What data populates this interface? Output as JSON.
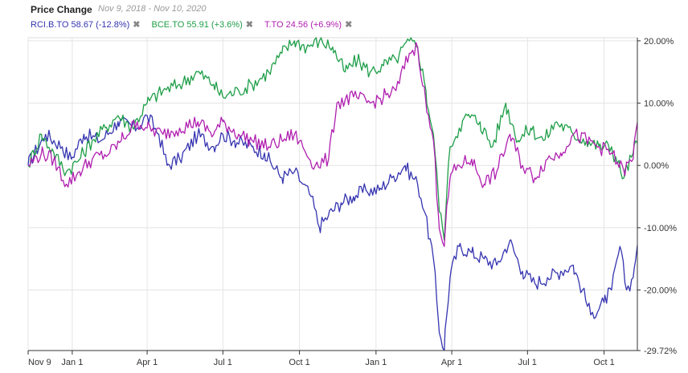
{
  "header": {
    "title": "Price Change",
    "date_range": "Nov 9, 2018 - Nov 10, 2020"
  },
  "legend": [
    {
      "label": "RCI.B.TO 58.67 (-12.8%)",
      "color": "#3534b0",
      "close": "✖"
    },
    {
      "label": "BCE.TO 55.91 (+3.6%)",
      "color": "#1e9e48",
      "close": "✖"
    },
    {
      "label": "T.TO 24.56 (+6.9%)",
      "color": "#b01fb0",
      "close": "✖"
    }
  ],
  "chart_data": {
    "type": "line",
    "x_ticks": [
      "Nov 9",
      "Jan 1",
      "Apr 1",
      "Jul 1",
      "Oct 1",
      "Jan 1",
      "Apr 1",
      "Jul 1",
      "Oct 1"
    ],
    "y_ticks": [
      "20.00%",
      "10.00%",
      "0.00%",
      "-10.00%",
      "-20.00%",
      "-29.72%"
    ],
    "ylim": [
      -29.72,
      20.5
    ],
    "x_range": [
      "2018-11-09",
      "2020-11-10"
    ],
    "series": [
      {
        "name": "RCI.B.TO",
        "color": "#3534b0",
        "points": [
          [
            "2018-11-09",
            0
          ],
          [
            "2018-11-30",
            5
          ],
          [
            "2018-12-20",
            3
          ],
          [
            "2018-12-31",
            1
          ],
          [
            "2019-01-15",
            5
          ],
          [
            "2019-02-05",
            4
          ],
          [
            "2019-02-25",
            7
          ],
          [
            "2019-03-20",
            6
          ],
          [
            "2019-04-01",
            8
          ],
          [
            "2019-04-15",
            5
          ],
          [
            "2019-04-25",
            0
          ],
          [
            "2019-05-10",
            1
          ],
          [
            "2019-06-01",
            5
          ],
          [
            "2019-06-20",
            3
          ],
          [
            "2019-07-01",
            5
          ],
          [
            "2019-07-15",
            4
          ],
          [
            "2019-08-05",
            3
          ],
          [
            "2019-08-20",
            2
          ],
          [
            "2019-09-10",
            -2
          ],
          [
            "2019-09-25",
            -1
          ],
          [
            "2019-10-05",
            -3
          ],
          [
            "2019-10-15",
            -5
          ],
          [
            "2019-10-25",
            -10
          ],
          [
            "2019-11-05",
            -8
          ],
          [
            "2019-11-20",
            -6
          ],
          [
            "2019-12-05",
            -5
          ],
          [
            "2019-12-20",
            -4
          ],
          [
            "2020-01-05",
            -4
          ],
          [
            "2020-01-20",
            -2
          ],
          [
            "2020-02-05",
            0
          ],
          [
            "2020-02-20",
            -3
          ],
          [
            "2020-03-01",
            -8
          ],
          [
            "2020-03-10",
            -15
          ],
          [
            "2020-03-16",
            -25
          ],
          [
            "2020-03-23",
            -29.7
          ],
          [
            "2020-03-30",
            -18
          ],
          [
            "2020-04-10",
            -13
          ],
          [
            "2020-04-25",
            -14
          ],
          [
            "2020-05-10",
            -15
          ],
          [
            "2020-05-25",
            -16
          ],
          [
            "2020-06-10",
            -12
          ],
          [
            "2020-06-25",
            -17
          ],
          [
            "2020-07-10",
            -19
          ],
          [
            "2020-07-25",
            -18
          ],
          [
            "2020-08-10",
            -17
          ],
          [
            "2020-08-25",
            -16
          ],
          [
            "2020-09-05",
            -20
          ],
          [
            "2020-09-15",
            -24
          ],
          [
            "2020-10-01",
            -22
          ],
          [
            "2020-10-10",
            -20
          ],
          [
            "2020-10-20",
            -13
          ],
          [
            "2020-10-28",
            -20
          ],
          [
            "2020-11-05",
            -18
          ],
          [
            "2020-11-10",
            -12.8
          ]
        ]
      },
      {
        "name": "BCE.TO",
        "color": "#1e9e48",
        "points": [
          [
            "2018-11-09",
            0
          ],
          [
            "2018-11-25",
            5
          ],
          [
            "2018-12-10",
            2
          ],
          [
            "2018-12-25",
            -1
          ],
          [
            "2019-01-10",
            1
          ],
          [
            "2019-01-25",
            4
          ],
          [
            "2019-02-10",
            6
          ],
          [
            "2019-02-25",
            8
          ],
          [
            "2019-03-15",
            6
          ],
          [
            "2019-04-01",
            10
          ],
          [
            "2019-04-20",
            12
          ],
          [
            "2019-05-10",
            13
          ],
          [
            "2019-06-01",
            15
          ],
          [
            "2019-06-20",
            13
          ],
          [
            "2019-07-01",
            11
          ],
          [
            "2019-07-20",
            12
          ],
          [
            "2019-08-05",
            13
          ],
          [
            "2019-08-25",
            15
          ],
          [
            "2019-09-10",
            18
          ],
          [
            "2019-09-25",
            20
          ],
          [
            "2019-10-10",
            19
          ],
          [
            "2019-10-25",
            20
          ],
          [
            "2019-11-10",
            19
          ],
          [
            "2019-11-25",
            15
          ],
          [
            "2019-12-10",
            17
          ],
          [
            "2019-12-25",
            15
          ],
          [
            "2020-01-10",
            16
          ],
          [
            "2020-01-25",
            17
          ],
          [
            "2020-02-10",
            20
          ],
          [
            "2020-02-20",
            19
          ],
          [
            "2020-03-01",
            12
          ],
          [
            "2020-03-10",
            5
          ],
          [
            "2020-03-16",
            -5
          ],
          [
            "2020-03-23",
            -12
          ],
          [
            "2020-03-30",
            3
          ],
          [
            "2020-04-10",
            6
          ],
          [
            "2020-04-20",
            8
          ],
          [
            "2020-05-05",
            7
          ],
          [
            "2020-05-20",
            3
          ],
          [
            "2020-06-05",
            10
          ],
          [
            "2020-06-20",
            4
          ],
          [
            "2020-07-05",
            6
          ],
          [
            "2020-07-20",
            4
          ],
          [
            "2020-08-05",
            7
          ],
          [
            "2020-08-25",
            5
          ],
          [
            "2020-09-10",
            4
          ],
          [
            "2020-09-25",
            3
          ],
          [
            "2020-10-10",
            3
          ],
          [
            "2020-10-25",
            -2
          ],
          [
            "2020-11-05",
            2
          ],
          [
            "2020-11-10",
            3.6
          ]
        ]
      },
      {
        "name": "T.TO",
        "color": "#b01fb0",
        "points": [
          [
            "2018-11-09",
            0
          ],
          [
            "2018-11-25",
            2
          ],
          [
            "2018-12-10",
            1
          ],
          [
            "2018-12-25",
            -3
          ],
          [
            "2019-01-10",
            -1
          ],
          [
            "2019-01-25",
            1
          ],
          [
            "2019-02-15",
            2
          ],
          [
            "2019-03-01",
            4
          ],
          [
            "2019-03-20",
            7
          ],
          [
            "2019-04-01",
            6
          ],
          [
            "2019-04-20",
            5
          ],
          [
            "2019-05-10",
            6
          ],
          [
            "2019-06-01",
            7
          ],
          [
            "2019-06-20",
            5
          ],
          [
            "2019-07-01",
            7
          ],
          [
            "2019-07-20",
            5
          ],
          [
            "2019-08-05",
            4
          ],
          [
            "2019-08-25",
            3
          ],
          [
            "2019-09-10",
            4
          ],
          [
            "2019-09-25",
            5
          ],
          [
            "2019-10-05",
            3
          ],
          [
            "2019-10-20",
            0
          ],
          [
            "2019-11-05",
            1
          ],
          [
            "2019-11-15",
            10
          ],
          [
            "2019-12-05",
            11
          ],
          [
            "2019-12-25",
            10
          ],
          [
            "2020-01-10",
            11
          ],
          [
            "2020-01-25",
            12
          ],
          [
            "2020-02-10",
            18
          ],
          [
            "2020-02-20",
            19
          ],
          [
            "2020-03-01",
            10
          ],
          [
            "2020-03-10",
            4
          ],
          [
            "2020-03-16",
            -8
          ],
          [
            "2020-03-23",
            -13
          ],
          [
            "2020-03-30",
            -2
          ],
          [
            "2020-04-10",
            0
          ],
          [
            "2020-04-25",
            1
          ],
          [
            "2020-05-10",
            -3
          ],
          [
            "2020-05-25",
            -1
          ],
          [
            "2020-06-10",
            5
          ],
          [
            "2020-06-25",
            0
          ],
          [
            "2020-07-10",
            -2
          ],
          [
            "2020-07-25",
            1
          ],
          [
            "2020-08-10",
            2
          ],
          [
            "2020-08-25",
            5
          ],
          [
            "2020-09-10",
            4
          ],
          [
            "2020-09-25",
            3
          ],
          [
            "2020-10-10",
            2
          ],
          [
            "2020-10-25",
            -1
          ],
          [
            "2020-11-05",
            1
          ],
          [
            "2020-11-10",
            6.9
          ]
        ]
      }
    ],
    "grid": true
  }
}
